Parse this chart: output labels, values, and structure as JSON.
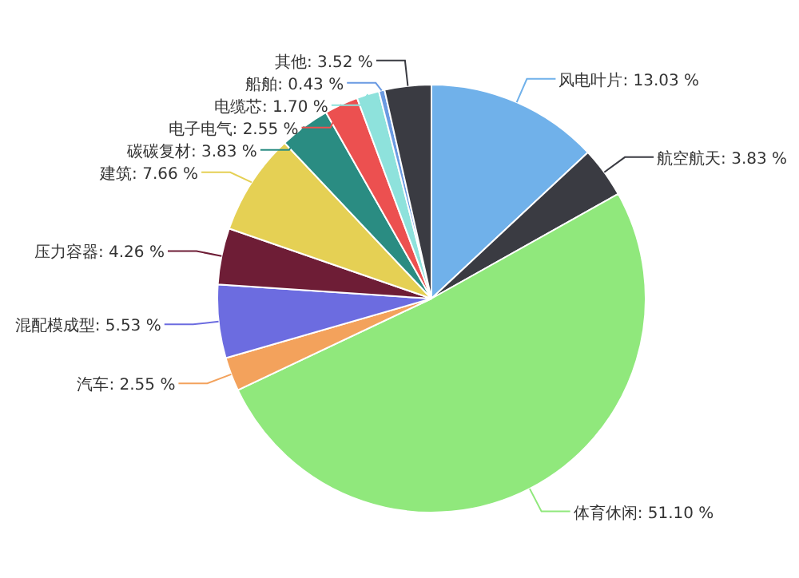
{
  "chart_data": {
    "type": "pie",
    "data_labels": true,
    "value_labels": [
      ": 13.03 %",
      ": 3.83 %",
      ": 51.10 %",
      ": 2.55 %",
      ": 5.53 %",
      ": 4.26 %",
      ": 7.66 %",
      ": 3.83 %",
      ": 2.55 %",
      ": 1.70 %",
      ": 0.43 %",
      ": 3.52 %"
    ],
    "categories": [
      "风电叶片",
      "航空航天",
      "体育休闲",
      "汽车",
      "混配模成型",
      "压力容器",
      "建筑",
      "碳碳复材",
      "电子电气",
      "电缆芯",
      "船舶",
      "其他"
    ],
    "values": [
      13.03,
      3.83,
      51.1,
      2.55,
      5.53,
      4.26,
      7.66,
      3.83,
      2.55,
      1.7,
      0.43,
      3.52
    ],
    "colors": [
      "#70b1ea",
      "#3a3b42",
      "#90e87c",
      "#f3a25c",
      "#6c6ce0",
      "#6e1d36",
      "#e5d054",
      "#2a8c82",
      "#ec5050",
      "#8ee2dc",
      "#6a9ae2",
      "#3a3b42"
    ]
  }
}
